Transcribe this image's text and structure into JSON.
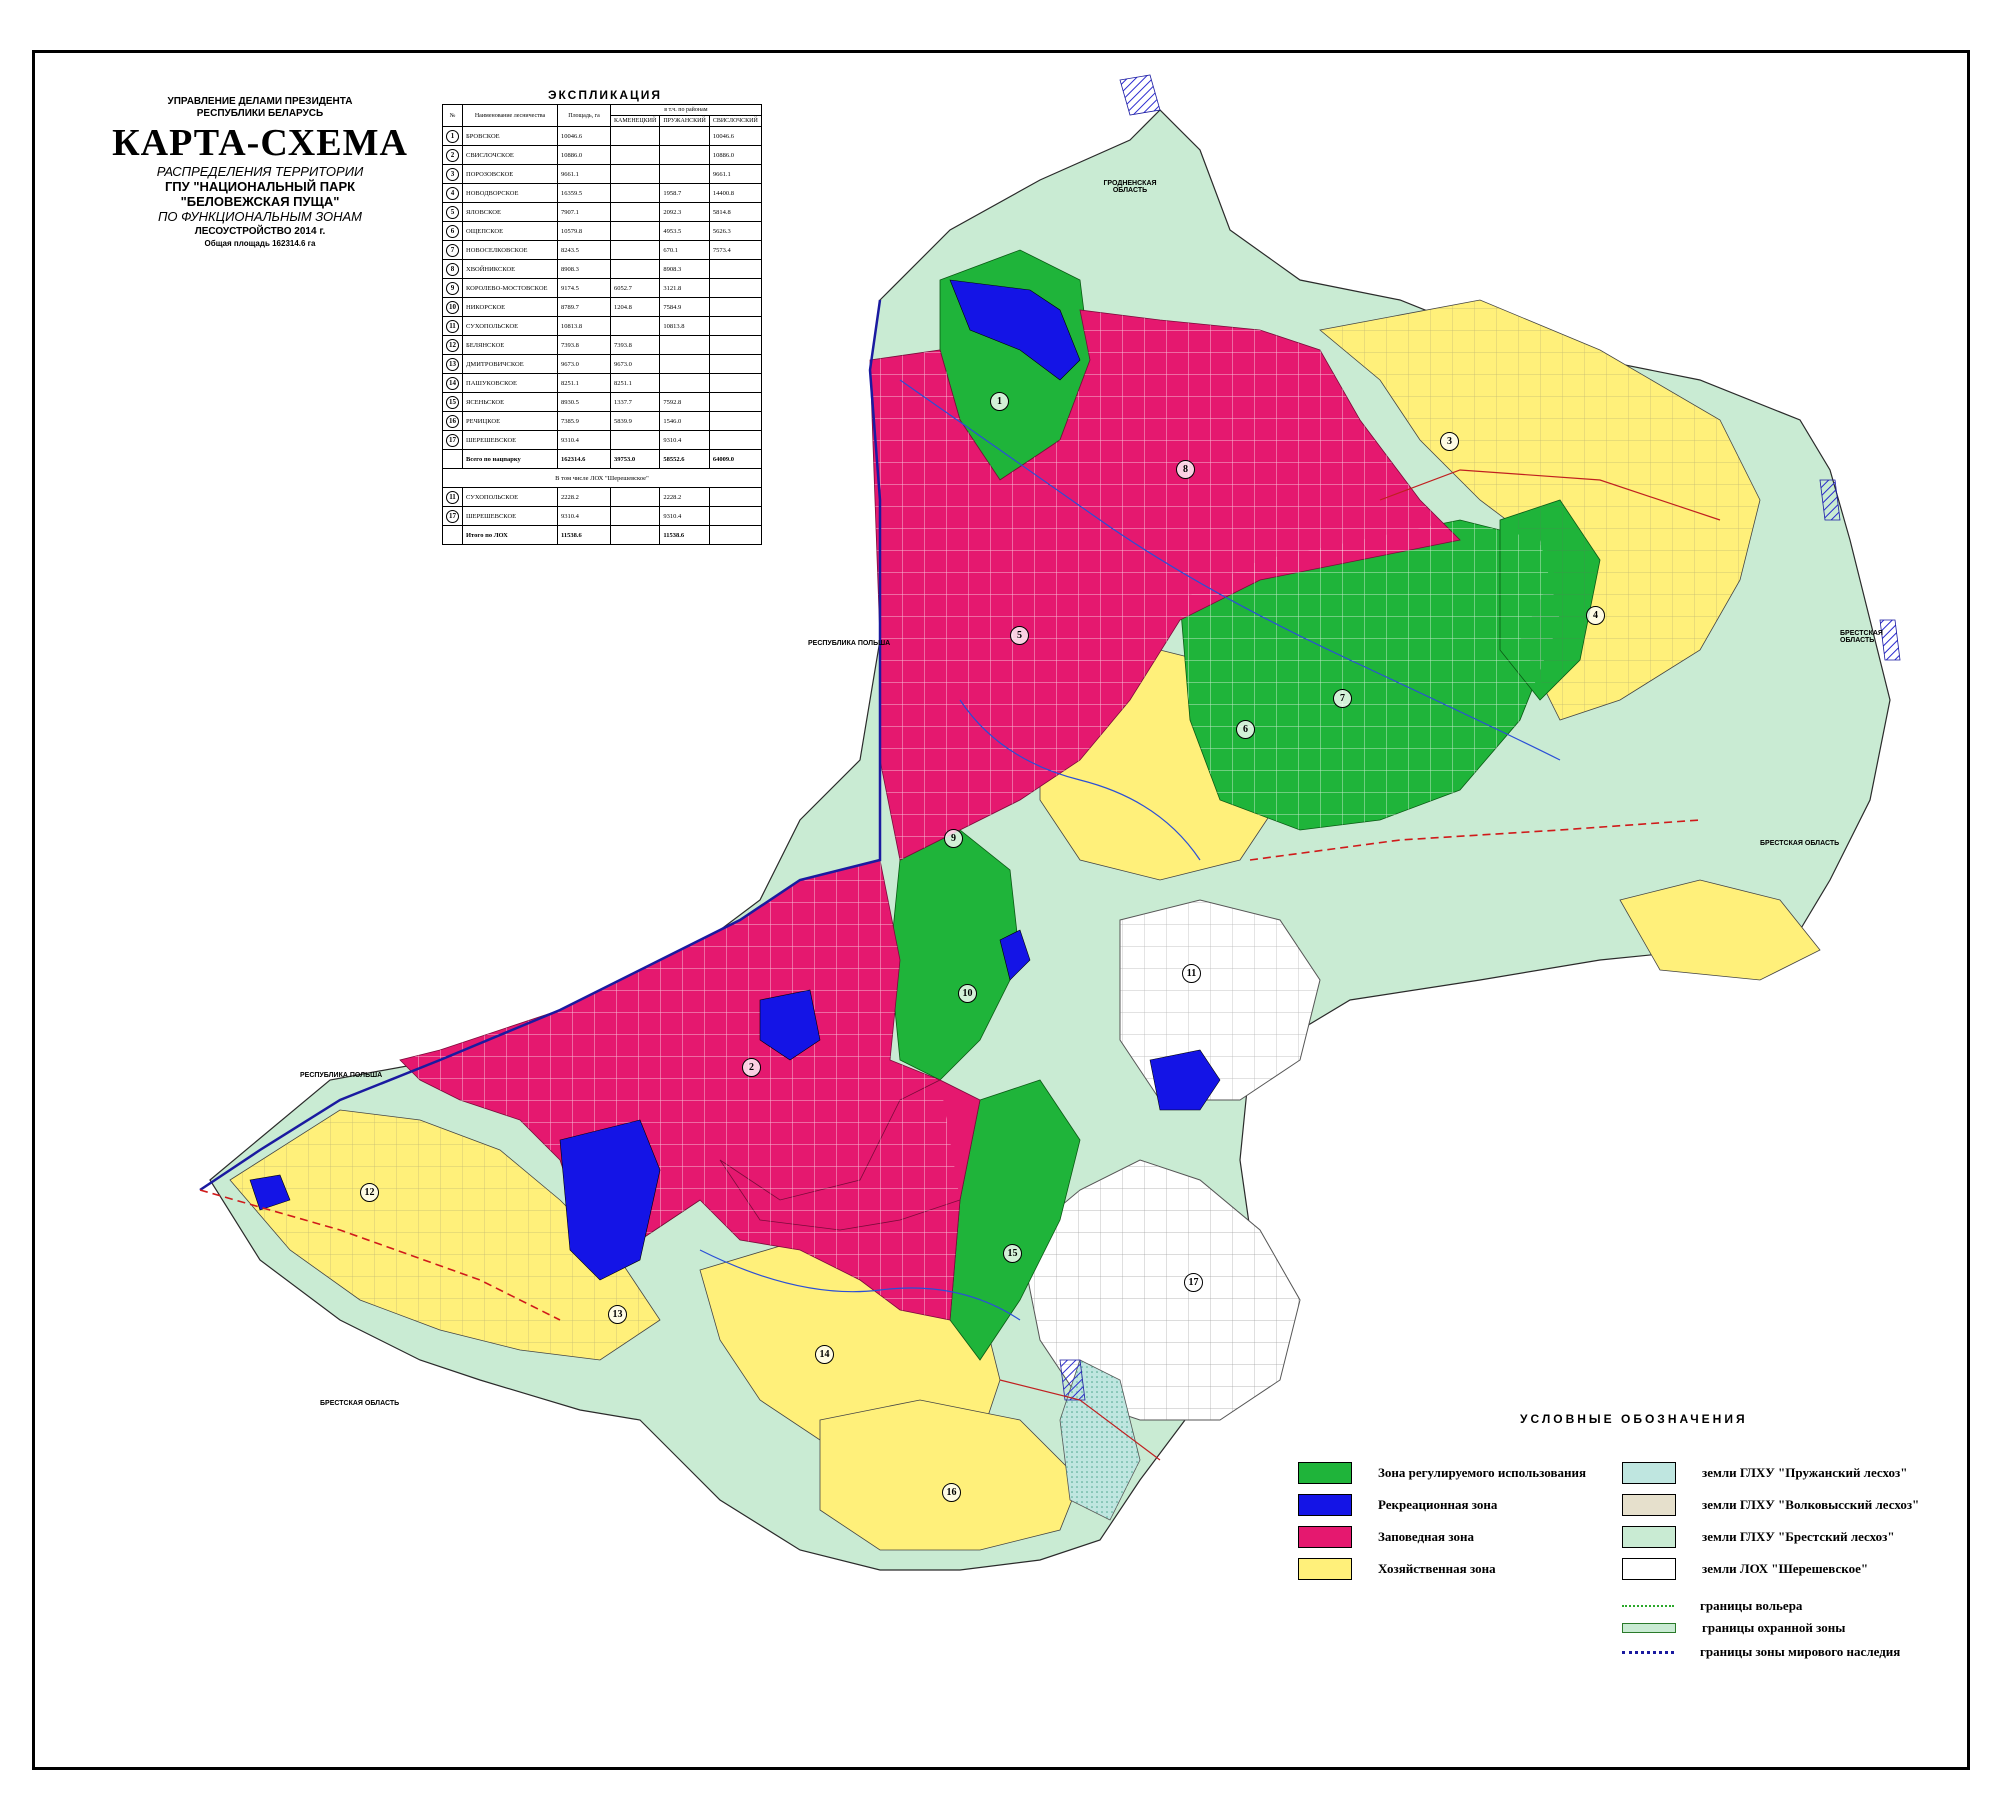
{
  "header": {
    "org_line1": "УПРАВЛЕНИЕ ДЕЛАМИ ПРЕЗИДЕНТА",
    "org_line2": "РЕСПУБЛИКИ БЕЛАРУСЬ",
    "title": "КАРТА-СХЕМА",
    "subtitle1": "РАСПРЕДЕЛЕНИЯ ТЕРРИТОРИИ",
    "subtitle2": "ГПУ \"НАЦИОНАЛЬНЫЙ ПАРК",
    "subtitle3": "\"БЕЛОВЕЖСКАЯ ПУЩА\"",
    "subtitle4": "ПО ФУНКЦИОНАЛЬНЫМ ЗОНАМ",
    "subtitle5": "ЛЕСОУСТРОЙСТВО 2014 г.",
    "total_area": "Общая площадь 162314.6 га"
  },
  "explication": {
    "title": "ЭКСПЛИКАЦИЯ",
    "headers": {
      "no": "№",
      "name": "Наименование лесничества",
      "area": "Площадь, га",
      "group": "в т.ч. по районам",
      "r1": "КАМЕНЕЦКИЙ",
      "r2": "ПРУЖАНСКИЙ",
      "r3": "СВИСЛОЧСКИЙ"
    },
    "rows": [
      {
        "n": "1",
        "name": "БРОВСКОЕ",
        "area": "10046.6",
        "r1": "",
        "r2": "",
        "r3": "10046.6"
      },
      {
        "n": "2",
        "name": "СВИСЛОЧСКОЕ",
        "area": "10886.0",
        "r1": "",
        "r2": "",
        "r3": "10886.0"
      },
      {
        "n": "3",
        "name": "ПОРОЗОВСКОЕ",
        "area": "9661.1",
        "r1": "",
        "r2": "",
        "r3": "9661.1"
      },
      {
        "n": "4",
        "name": "НОВОДВОРСКОЕ",
        "area": "16359.5",
        "r1": "",
        "r2": "1958.7",
        "r3": "14400.8"
      },
      {
        "n": "5",
        "name": "ЯЛОВСКОЕ",
        "area": "7907.1",
        "r1": "",
        "r2": "2092.3",
        "r3": "5814.8"
      },
      {
        "n": "6",
        "name": "ОЩЕПСКОЕ",
        "area": "10579.8",
        "r1": "",
        "r2": "4953.5",
        "r3": "5626.3"
      },
      {
        "n": "7",
        "name": "НОВОСЕЛКОВСКОЕ",
        "area": "8243.5",
        "r1": "",
        "r2": "670.1",
        "r3": "7573.4"
      },
      {
        "n": "8",
        "name": "ХВОЙНИКСКОЕ",
        "area": "8908.3",
        "r1": "",
        "r2": "8908.3",
        "r3": ""
      },
      {
        "n": "9",
        "name": "КОРОЛЕВО-МОСТОВСКОЕ",
        "area": "9174.5",
        "r1": "6052.7",
        "r2": "3121.8",
        "r3": ""
      },
      {
        "n": "10",
        "name": "НИКОРСКОЕ",
        "area": "8789.7",
        "r1": "1204.8",
        "r2": "7584.9",
        "r3": ""
      },
      {
        "n": "11",
        "name": "СУХОПОЛЬСКОЕ",
        "area": "10813.8",
        "r1": "",
        "r2": "10813.8",
        "r3": ""
      },
      {
        "n": "12",
        "name": "БЕЛЯНСКОЕ",
        "area": "7393.8",
        "r1": "7393.8",
        "r2": "",
        "r3": ""
      },
      {
        "n": "13",
        "name": "ДМИТРОВИЧСКОЕ",
        "area": "9673.0",
        "r1": "9673.0",
        "r2": "",
        "r3": ""
      },
      {
        "n": "14",
        "name": "ПАШУКОВСКОЕ",
        "area": "8251.1",
        "r1": "8251.1",
        "r2": "",
        "r3": ""
      },
      {
        "n": "15",
        "name": "ЯСЕНЬСКОЕ",
        "area": "8930.5",
        "r1": "1337.7",
        "r2": "7592.8",
        "r3": ""
      },
      {
        "n": "16",
        "name": "РЕЧИЦКОЕ",
        "area": "7385.9",
        "r1": "5839.9",
        "r2": "1546.0",
        "r3": ""
      },
      {
        "n": "17",
        "name": "ШЕРЕШЕВСКОЕ",
        "area": "9310.4",
        "r1": "",
        "r2": "9310.4",
        "r3": ""
      }
    ],
    "total": {
      "name": "Всего по нацпарку",
      "area": "162314.6",
      "r1": "39753.0",
      "r2": "58552.6",
      "r3": "64009.0"
    },
    "lox_header": "В том числе ЛОХ \"Шерешевское\"",
    "lox_rows": [
      {
        "n": "11",
        "name": "СУХОПОЛЬСКОЕ",
        "area": "2228.2",
        "r1": "",
        "r2": "2228.2",
        "r3": ""
      },
      {
        "n": "17",
        "name": "ШЕРЕШЕВСКОЕ",
        "area": "9310.4",
        "r1": "",
        "r2": "9310.4",
        "r3": ""
      }
    ],
    "lox_total": {
      "name": "Итого по ЛОХ",
      "area": "11538.6",
      "r1": "",
      "r2": "11538.6",
      "r3": ""
    }
  },
  "map_labels": {
    "poland_north": "РЕСПУБЛИКА ПОЛЬША",
    "poland_south": "РЕСПУБЛИКА ПОЛЬША",
    "grodno": "ГРОДНЕНСКАЯ ОБЛАСТЬ",
    "brest_east": "БРЕСТСКАЯ ОБЛАСТЬ",
    "brest_east2": "БРЕСТСКАЯ ОБЛАСТЬ",
    "brest_south": "БРЕСТСКАЯ ОБЛАСТЬ",
    "forestry_numbers": [
      "1",
      "2",
      "3",
      "4",
      "5",
      "6",
      "7",
      "8",
      "9",
      "10",
      "11",
      "12",
      "13",
      "14",
      "15",
      "16",
      "17"
    ]
  },
  "legend": {
    "title": "УСЛОВНЫЕ ОБОЗНАЧЕНИЯ",
    "zone_regulated": "Зона регулируемого использования",
    "zone_recreation": "Рекреационная зона",
    "zone_reserve": "Заповедная зона",
    "zone_economic": "Хозяйственная зона",
    "land_pruzhany": "земли ГЛХУ \"Пружанский лесхоз\"",
    "land_volkovysk": "земли ГЛХУ \"Волковысский лесхоз\"",
    "land_brest": "земли ГЛХУ \"Брестский лесхоз\"",
    "land_lox": "земли ЛОХ \"Шерешевское\"",
    "border_enclosure": "границы вольера",
    "border_buffer": "границы охранной зоны",
    "border_heritage": "границы зоны мирового наследия"
  },
  "colors": {
    "green": "#1fb43a",
    "blue": "#1414e6",
    "magenta": "#e5186f",
    "yellow": "#fff07a",
    "pale_green": "#c9ebd3",
    "pale_cyan": "#bfe6e0",
    "pale_beige": "#e6e0cc"
  }
}
